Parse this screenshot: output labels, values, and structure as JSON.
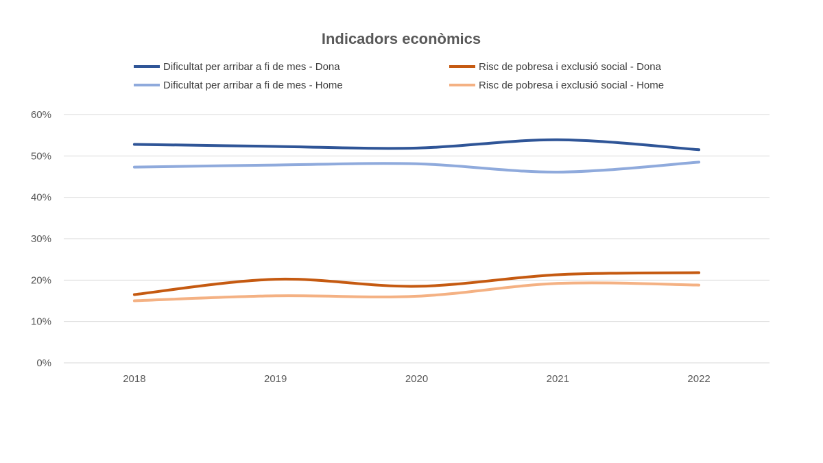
{
  "chart_data": {
    "type": "line",
    "title": "Indicadors econòmics",
    "xlabel": "",
    "ylabel": "",
    "categories": [
      "2018",
      "2019",
      "2020",
      "2021",
      "2022"
    ],
    "y_ticks": [
      "0%",
      "10%",
      "20%",
      "30%",
      "40%",
      "50%",
      "60%"
    ],
    "ylim": [
      0,
      60
    ],
    "y_unit": "%",
    "grid": true,
    "smooth": true,
    "legend_position": "top",
    "series": [
      {
        "name": "Dificultat per arribar a fi de mes - Dona",
        "color": "#2f5597",
        "values": [
          52.8,
          52.3,
          51.9,
          53.9,
          51.5
        ]
      },
      {
        "name": "Risc de pobresa i exclusió social - Dona",
        "color": "#c55a11",
        "values": [
          16.5,
          20.2,
          18.5,
          21.3,
          21.8
        ]
      },
      {
        "name": "Dificultat per arribar a fi de mes - Home",
        "color": "#8faadc",
        "values": [
          47.3,
          47.8,
          48.1,
          46.1,
          48.5
        ]
      },
      {
        "name": "Risc de pobresa i exclusió social - Home",
        "color": "#f4b183",
        "values": [
          15.0,
          16.2,
          16.1,
          19.2,
          18.8
        ]
      }
    ]
  }
}
